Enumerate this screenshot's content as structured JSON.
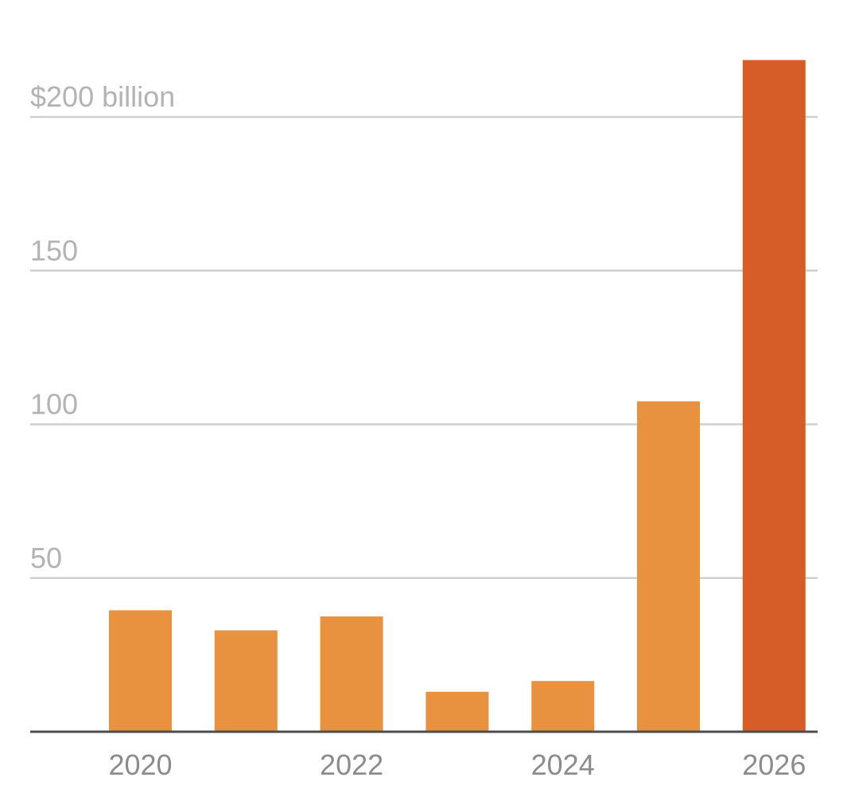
{
  "chart_data": {
    "type": "bar",
    "title": "",
    "xlabel": "",
    "ylabel": "",
    "categories": [
      "2020",
      "2021",
      "2022",
      "2023",
      "2024",
      "2025",
      "2026"
    ],
    "values": [
      39.5,
      33,
      37.5,
      13,
      16.5,
      107.5,
      218.5
    ],
    "bar_colors": [
      "#e8923f",
      "#e8923f",
      "#e8923f",
      "#e8923f",
      "#e8923f",
      "#e8923f",
      "#d65d28"
    ],
    "ylim": [
      0,
      200
    ],
    "y_ticks": [
      {
        "value": 50,
        "label": "50"
      },
      {
        "value": 100,
        "label": "100"
      },
      {
        "value": 150,
        "label": "150"
      },
      {
        "value": 200,
        "label": "$200 billion"
      }
    ],
    "x_tick_labels": [
      {
        "category": "2020",
        "label": "2020"
      },
      {
        "category": "2022",
        "label": "2022"
      },
      {
        "category": "2024",
        "label": "2024"
      },
      {
        "category": "2026",
        "label": "2026"
      }
    ],
    "grid": true,
    "colors": {
      "bar": "#e8923f",
      "highlight_bar": "#d65d28",
      "gridline": "#cfcfcf",
      "baseline": "#4d4d4d",
      "y_tick_text": "#b3b3b3",
      "x_tick_text": "#8c8c8c"
    }
  }
}
